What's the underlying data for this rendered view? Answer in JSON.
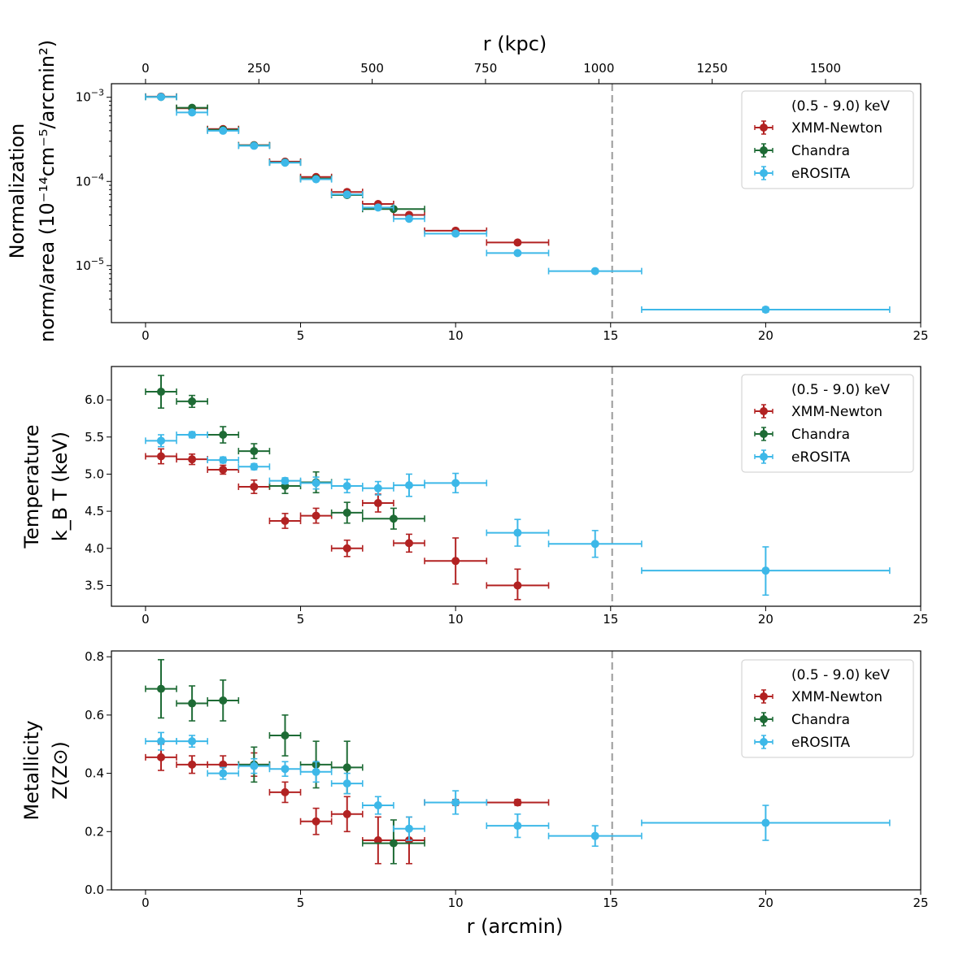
{
  "figure": {
    "top_axis_label": "r (kpc)",
    "top_ticks": [
      "0",
      "250",
      "500",
      "750",
      "1000",
      "1250",
      "1500"
    ],
    "top_tick_values": [
      0,
      250,
      500,
      750,
      1000,
      1250,
      1500
    ],
    "kpc_per_arcmin": 68.4,
    "bottom_axis_label": "r (arcmin)",
    "x_ticks": [
      "0",
      "5",
      "10",
      "15",
      "20",
      "25"
    ],
    "x_tick_values": [
      0,
      5,
      10,
      15,
      20,
      25
    ],
    "xlim": [
      -1.1,
      25.0
    ],
    "vline_x": 15.05,
    "legend_title": "(0.5 - 9.0) keV",
    "colors": {
      "XMM-Newton": "#b22222",
      "Chandra": "#1e6b35",
      "eROSITA": "#3db8e8"
    }
  },
  "chart_data": [
    {
      "type": "scatter",
      "scale": "log",
      "ylabel_line1": "Normalization",
      "ylabel_line2": "norm/area (10⁻¹⁴cm⁻⁵/arcmin²)",
      "ylim": [
        2.1e-06,
        0.00145
      ],
      "y_ticks": [
        {
          "value": 0.001,
          "base": "10",
          "exp": "−3"
        },
        {
          "value": 0.0001,
          "base": "10",
          "exp": "−4"
        },
        {
          "value": 1e-05,
          "base": "10",
          "exp": "−5"
        }
      ],
      "series": [
        {
          "name": "XMM-Newton",
          "points": [
            {
              "x": 0.5,
              "xerr": 0.5,
              "y": 0.00102,
              "ylo": 0.00098,
              "yhi": 0.00106
            },
            {
              "x": 1.5,
              "xerr": 0.5,
              "y": 0.00074,
              "ylo": 0.00071,
              "yhi": 0.00077
            },
            {
              "x": 2.5,
              "xerr": 0.5,
              "y": 0.00042,
              "ylo": 0.0004,
              "yhi": 0.00044
            },
            {
              "x": 3.5,
              "xerr": 0.5,
              "y": 0.00027,
              "ylo": 0.00026,
              "yhi": 0.00028
            },
            {
              "x": 4.5,
              "xerr": 0.5,
              "y": 0.000172,
              "ylo": 0.000165,
              "yhi": 0.000179
            },
            {
              "x": 5.5,
              "xerr": 0.5,
              "y": 0.000113,
              "ylo": 0.000108,
              "yhi": 0.000118
            },
            {
              "x": 6.5,
              "xerr": 0.5,
              "y": 7.5e-05,
              "ylo": 7.2e-05,
              "yhi": 7.8e-05
            },
            {
              "x": 7.5,
              "xerr": 0.5,
              "y": 5.4e-05,
              "ylo": 5.2e-05,
              "yhi": 5.6e-05
            },
            {
              "x": 8.5,
              "xerr": 0.5,
              "y": 4e-05,
              "ylo": 3.85e-05,
              "yhi": 4.15e-05
            },
            {
              "x": 10.0,
              "xerr": 1.0,
              "y": 2.6e-05,
              "ylo": 2.5e-05,
              "yhi": 2.7e-05
            },
            {
              "x": 12.0,
              "xerr": 1.0,
              "y": 1.88e-05,
              "ylo": 1.81e-05,
              "yhi": 1.95e-05
            }
          ]
        },
        {
          "name": "Chandra",
          "points": [
            {
              "x": 0.5,
              "xerr": 0.5,
              "y": 0.00101,
              "ylo": 0.00097,
              "yhi": 0.00105
            },
            {
              "x": 1.5,
              "xerr": 0.5,
              "y": 0.00075,
              "ylo": 0.00072,
              "yhi": 0.00078
            },
            {
              "x": 2.5,
              "xerr": 0.5,
              "y": 0.00041,
              "ylo": 0.00039,
              "yhi": 0.00043
            },
            {
              "x": 3.5,
              "xerr": 0.5,
              "y": 0.000268,
              "ylo": 0.000257,
              "yhi": 0.000279
            },
            {
              "x": 4.5,
              "xerr": 0.5,
              "y": 0.000168,
              "ylo": 0.000161,
              "yhi": 0.000175
            },
            {
              "x": 5.5,
              "xerr": 0.5,
              "y": 0.000108,
              "ylo": 0.000104,
              "yhi": 0.000112
            },
            {
              "x": 6.5,
              "xerr": 0.5,
              "y": 6.9e-05,
              "ylo": 6.6e-05,
              "yhi": 7.2e-05
            },
            {
              "x": 8.0,
              "xerr": 1.0,
              "y": 4.7e-05,
              "ylo": 4.5e-05,
              "yhi": 4.9e-05
            }
          ]
        },
        {
          "name": "eROSITA",
          "points": [
            {
              "x": 0.5,
              "xerr": 0.5,
              "y": 0.00101,
              "ylo": 0.00097,
              "yhi": 0.00105
            },
            {
              "x": 1.5,
              "xerr": 0.5,
              "y": 0.00066,
              "ylo": 0.00063,
              "yhi": 0.00069
            },
            {
              "x": 2.5,
              "xerr": 0.5,
              "y": 0.0004,
              "ylo": 0.00038,
              "yhi": 0.00042
            },
            {
              "x": 3.5,
              "xerr": 0.5,
              "y": 0.000265,
              "ylo": 0.000254,
              "yhi": 0.000276
            },
            {
              "x": 4.5,
              "xerr": 0.5,
              "y": 0.000167,
              "ylo": 0.00016,
              "yhi": 0.000174
            },
            {
              "x": 5.5,
              "xerr": 0.5,
              "y": 0.000106,
              "ylo": 0.000102,
              "yhi": 0.00011
            },
            {
              "x": 6.5,
              "xerr": 0.5,
              "y": 7e-05,
              "ylo": 6.7e-05,
              "yhi": 7.3e-05
            },
            {
              "x": 7.5,
              "xerr": 0.5,
              "y": 4.9e-05,
              "ylo": 4.7e-05,
              "yhi": 5.1e-05
            },
            {
              "x": 8.5,
              "xerr": 0.5,
              "y": 3.6e-05,
              "ylo": 3.45e-05,
              "yhi": 3.75e-05
            },
            {
              "x": 10.0,
              "xerr": 1.0,
              "y": 2.4e-05,
              "ylo": 2.3e-05,
              "yhi": 2.5e-05
            },
            {
              "x": 12.0,
              "xerr": 1.0,
              "y": 1.41e-05,
              "ylo": 1.35e-05,
              "yhi": 1.47e-05
            },
            {
              "x": 14.5,
              "xerr": 1.5,
              "y": 8.6e-06,
              "ylo": 8.2e-06,
              "yhi": 9e-06
            },
            {
              "x": 20.0,
              "xerr": 4.0,
              "y": 3e-06,
              "ylo": 2.8e-06,
              "yhi": 3.2e-06
            }
          ]
        }
      ]
    },
    {
      "type": "scatter",
      "scale": "linear",
      "ylabel_line1": "Temperature",
      "ylabel_line2": "k_B T (keV)",
      "ylim": [
        3.22,
        6.45
      ],
      "y_ticks": [
        {
          "value": 3.5,
          "label": "3.5"
        },
        {
          "value": 4.0,
          "label": "4.0"
        },
        {
          "value": 4.5,
          "label": "4.5"
        },
        {
          "value": 5.0,
          "label": "5.0"
        },
        {
          "value": 5.5,
          "label": "5.5"
        },
        {
          "value": 6.0,
          "label": "6.0"
        }
      ],
      "series": [
        {
          "name": "XMM-Newton",
          "points": [
            {
              "x": 0.5,
              "xerr": 0.5,
              "y": 5.24,
              "ylo": 5.14,
              "yhi": 5.34
            },
            {
              "x": 1.5,
              "xerr": 0.5,
              "y": 5.2,
              "ylo": 5.13,
              "yhi": 5.27
            },
            {
              "x": 2.5,
              "xerr": 0.5,
              "y": 5.06,
              "ylo": 5.0,
              "yhi": 5.12
            },
            {
              "x": 3.5,
              "xerr": 0.5,
              "y": 4.83,
              "ylo": 4.74,
              "yhi": 4.92
            },
            {
              "x": 4.5,
              "xerr": 0.5,
              "y": 4.37,
              "ylo": 4.27,
              "yhi": 4.47
            },
            {
              "x": 5.5,
              "xerr": 0.5,
              "y": 4.44,
              "ylo": 4.34,
              "yhi": 4.54
            },
            {
              "x": 6.5,
              "xerr": 0.5,
              "y": 4.0,
              "ylo": 3.89,
              "yhi": 4.11
            },
            {
              "x": 7.5,
              "xerr": 0.5,
              "y": 4.61,
              "ylo": 4.49,
              "yhi": 4.73
            },
            {
              "x": 8.5,
              "xerr": 0.5,
              "y": 4.07,
              "ylo": 3.95,
              "yhi": 4.19
            },
            {
              "x": 10.0,
              "xerr": 1.0,
              "y": 3.83,
              "ylo": 3.52,
              "yhi": 4.14
            },
            {
              "x": 12.0,
              "xerr": 1.0,
              "y": 3.5,
              "ylo": 3.31,
              "yhi": 3.72
            }
          ]
        },
        {
          "name": "Chandra",
          "points": [
            {
              "x": 0.5,
              "xerr": 0.5,
              "y": 6.11,
              "ylo": 5.89,
              "yhi": 6.33
            },
            {
              "x": 1.5,
              "xerr": 0.5,
              "y": 5.98,
              "ylo": 5.9,
              "yhi": 6.06
            },
            {
              "x": 2.5,
              "xerr": 0.5,
              "y": 5.53,
              "ylo": 5.42,
              "yhi": 5.64
            },
            {
              "x": 3.5,
              "xerr": 0.5,
              "y": 5.31,
              "ylo": 5.21,
              "yhi": 5.41
            },
            {
              "x": 4.5,
              "xerr": 0.5,
              "y": 4.84,
              "ylo": 4.74,
              "yhi": 4.94
            },
            {
              "x": 5.5,
              "xerr": 0.5,
              "y": 4.89,
              "ylo": 4.75,
              "yhi": 5.03
            },
            {
              "x": 6.5,
              "xerr": 0.5,
              "y": 4.48,
              "ylo": 4.34,
              "yhi": 4.62
            },
            {
              "x": 8.0,
              "xerr": 1.0,
              "y": 4.4,
              "ylo": 4.26,
              "yhi": 4.54
            }
          ]
        },
        {
          "name": "eROSITA",
          "points": [
            {
              "x": 0.5,
              "xerr": 0.5,
              "y": 5.45,
              "ylo": 5.37,
              "yhi": 5.53
            },
            {
              "x": 1.5,
              "xerr": 0.5,
              "y": 5.53,
              "ylo": 5.49,
              "yhi": 5.57
            },
            {
              "x": 2.5,
              "xerr": 0.5,
              "y": 5.19,
              "ylo": 5.15,
              "yhi": 5.23
            },
            {
              "x": 3.5,
              "xerr": 0.5,
              "y": 5.1,
              "ylo": 5.06,
              "yhi": 5.14
            },
            {
              "x": 4.5,
              "xerr": 0.5,
              "y": 4.91,
              "ylo": 4.87,
              "yhi": 4.95
            },
            {
              "x": 5.5,
              "xerr": 0.5,
              "y": 4.88,
              "ylo": 4.8,
              "yhi": 4.96
            },
            {
              "x": 6.5,
              "xerr": 0.5,
              "y": 4.84,
              "ylo": 4.75,
              "yhi": 4.93
            },
            {
              "x": 7.5,
              "xerr": 0.5,
              "y": 4.81,
              "ylo": 4.72,
              "yhi": 4.9
            },
            {
              "x": 8.5,
              "xerr": 0.5,
              "y": 4.85,
              "ylo": 4.7,
              "yhi": 5.0
            },
            {
              "x": 10.0,
              "xerr": 1.0,
              "y": 4.88,
              "ylo": 4.75,
              "yhi": 5.01
            },
            {
              "x": 12.0,
              "xerr": 1.0,
              "y": 4.21,
              "ylo": 4.03,
              "yhi": 4.39
            },
            {
              "x": 14.5,
              "xerr": 1.5,
              "y": 4.06,
              "ylo": 3.88,
              "yhi": 4.24
            },
            {
              "x": 20.0,
              "xerr": 4.0,
              "y": 3.7,
              "ylo": 3.37,
              "yhi": 4.02
            }
          ]
        }
      ]
    },
    {
      "type": "scatter",
      "scale": "linear",
      "ylabel_line1": "Metallicity",
      "ylabel_line2": "Z(Z⊙)",
      "ylim": [
        0.0,
        0.82
      ],
      "y_ticks": [
        {
          "value": 0.0,
          "label": "0.0"
        },
        {
          "value": 0.2,
          "label": "0.2"
        },
        {
          "value": 0.4,
          "label": "0.4"
        },
        {
          "value": 0.6,
          "label": "0.6"
        },
        {
          "value": 0.8,
          "label": "0.8"
        }
      ],
      "series": [
        {
          "name": "XMM-Newton",
          "points": [
            {
              "x": 0.5,
              "xerr": 0.5,
              "y": 0.455,
              "ylo": 0.41,
              "yhi": 0.5
            },
            {
              "x": 1.5,
              "xerr": 0.5,
              "y": 0.43,
              "ylo": 0.4,
              "yhi": 0.46
            },
            {
              "x": 2.5,
              "xerr": 0.5,
              "y": 0.43,
              "ylo": 0.4,
              "yhi": 0.46
            },
            {
              "x": 3.5,
              "xerr": 0.5,
              "y": 0.43,
              "ylo": 0.39,
              "yhi": 0.47
            },
            {
              "x": 4.5,
              "xerr": 0.5,
              "y": 0.335,
              "ylo": 0.3,
              "yhi": 0.37
            },
            {
              "x": 5.5,
              "xerr": 0.5,
              "y": 0.235,
              "ylo": 0.19,
              "yhi": 0.28
            },
            {
              "x": 6.5,
              "xerr": 0.5,
              "y": 0.26,
              "ylo": 0.2,
              "yhi": 0.32
            },
            {
              "x": 7.5,
              "xerr": 0.5,
              "y": 0.17,
              "ylo": 0.09,
              "yhi": 0.25
            },
            {
              "x": 8.5,
              "xerr": 0.5,
              "y": 0.17,
              "ylo": 0.09,
              "yhi": 0.25
            },
            {
              "x": 10.0,
              "xerr": 1.0,
              "y": 0.3,
              "ylo": 0.29,
              "yhi": 0.31
            },
            {
              "x": 12.0,
              "xerr": 1.0,
              "y": 0.3,
              "ylo": 0.29,
              "yhi": 0.31
            }
          ]
        },
        {
          "name": "Chandra",
          "points": [
            {
              "x": 0.5,
              "xerr": 0.5,
              "y": 0.69,
              "ylo": 0.59,
              "yhi": 0.79
            },
            {
              "x": 1.5,
              "xerr": 0.5,
              "y": 0.64,
              "ylo": 0.58,
              "yhi": 0.7
            },
            {
              "x": 2.5,
              "xerr": 0.5,
              "y": 0.65,
              "ylo": 0.58,
              "yhi": 0.72
            },
            {
              "x": 3.5,
              "xerr": 0.5,
              "y": 0.43,
              "ylo": 0.37,
              "yhi": 0.49
            },
            {
              "x": 4.5,
              "xerr": 0.5,
              "y": 0.53,
              "ylo": 0.46,
              "yhi": 0.6
            },
            {
              "x": 5.5,
              "xerr": 0.5,
              "y": 0.43,
              "ylo": 0.35,
              "yhi": 0.51
            },
            {
              "x": 6.5,
              "xerr": 0.5,
              "y": 0.42,
              "ylo": 0.33,
              "yhi": 0.51
            },
            {
              "x": 8.0,
              "xerr": 1.0,
              "y": 0.16,
              "ylo": 0.09,
              "yhi": 0.24
            }
          ]
        },
        {
          "name": "eROSITA",
          "points": [
            {
              "x": 0.5,
              "xerr": 0.5,
              "y": 0.51,
              "ylo": 0.48,
              "yhi": 0.54
            },
            {
              "x": 1.5,
              "xerr": 0.5,
              "y": 0.51,
              "ylo": 0.49,
              "yhi": 0.53
            },
            {
              "x": 2.5,
              "xerr": 0.5,
              "y": 0.4,
              "ylo": 0.38,
              "yhi": 0.42
            },
            {
              "x": 3.5,
              "xerr": 0.5,
              "y": 0.425,
              "ylo": 0.4,
              "yhi": 0.45
            },
            {
              "x": 4.5,
              "xerr": 0.5,
              "y": 0.415,
              "ylo": 0.39,
              "yhi": 0.44
            },
            {
              "x": 5.5,
              "xerr": 0.5,
              "y": 0.405,
              "ylo": 0.37,
              "yhi": 0.44
            },
            {
              "x": 6.5,
              "xerr": 0.5,
              "y": 0.365,
              "ylo": 0.33,
              "yhi": 0.4
            },
            {
              "x": 7.5,
              "xerr": 0.5,
              "y": 0.29,
              "ylo": 0.26,
              "yhi": 0.32
            },
            {
              "x": 8.5,
              "xerr": 0.5,
              "y": 0.21,
              "ylo": 0.17,
              "yhi": 0.25
            },
            {
              "x": 10.0,
              "xerr": 1.0,
              "y": 0.3,
              "ylo": 0.26,
              "yhi": 0.34
            },
            {
              "x": 12.0,
              "xerr": 1.0,
              "y": 0.22,
              "ylo": 0.18,
              "yhi": 0.26
            },
            {
              "x": 14.5,
              "xerr": 1.5,
              "y": 0.185,
              "ylo": 0.15,
              "yhi": 0.22
            },
            {
              "x": 20.0,
              "xerr": 4.0,
              "y": 0.23,
              "ylo": 0.17,
              "yhi": 0.29
            }
          ]
        }
      ]
    }
  ]
}
